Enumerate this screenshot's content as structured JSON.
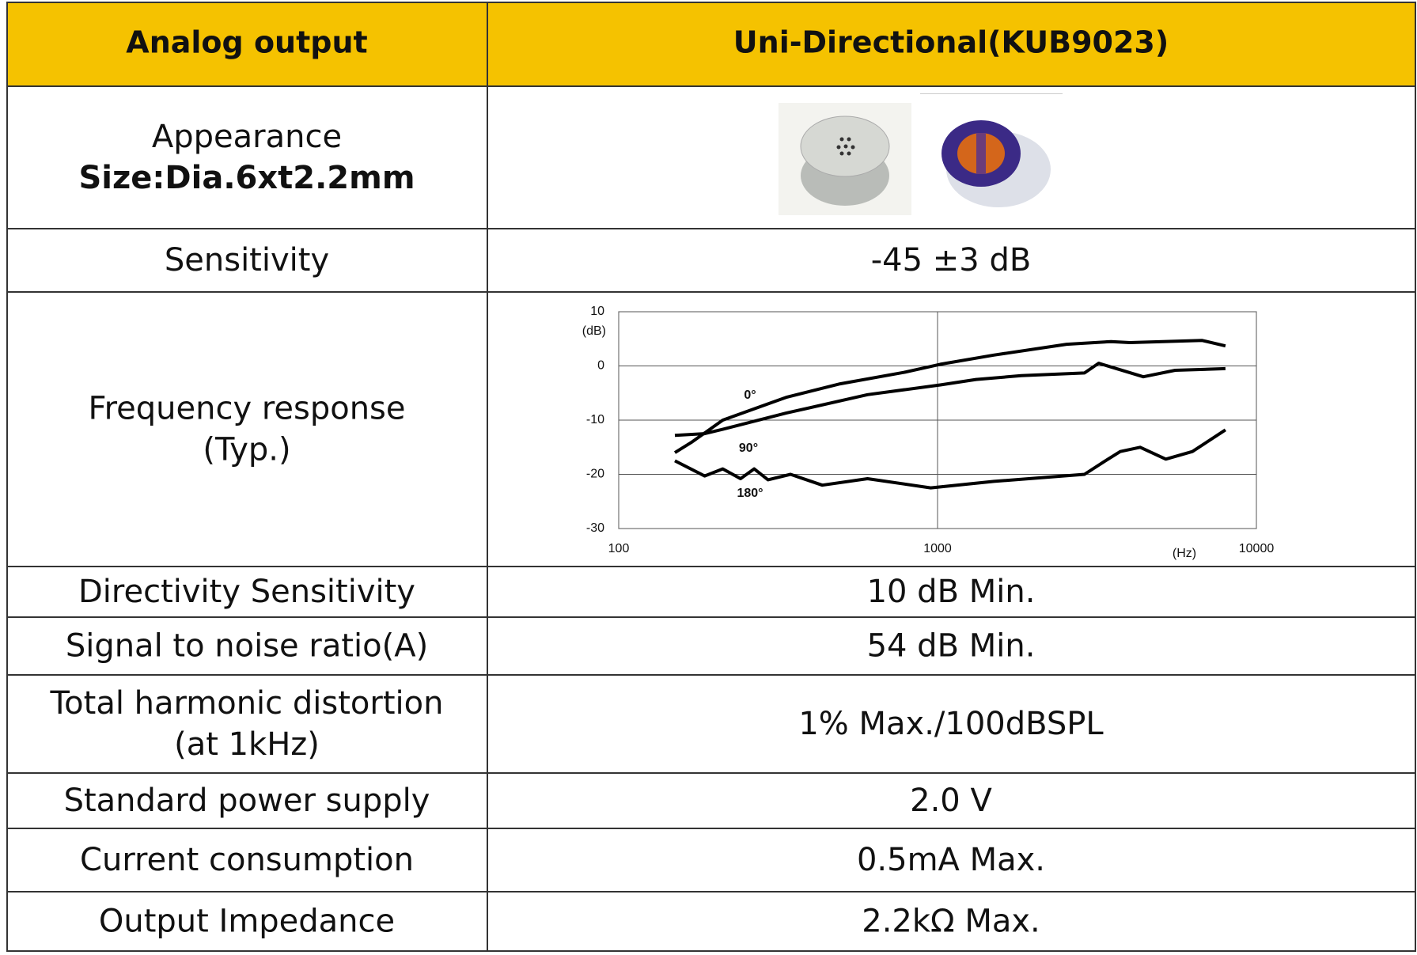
{
  "table": {
    "header": [
      "Analog output",
      "Uni-Directional(KUB9023)"
    ],
    "rows": [
      {
        "label": "Appearance",
        "sublabel": "Size:Dia.6xt2.2mm"
      },
      {
        "label": "Sensitivity",
        "value": "-45 ±3 dB"
      },
      {
        "label": "Frequency response",
        "sublabel": "(Typ.)"
      },
      {
        "label": "Directivity Sensitivity",
        "value": "10 dB Min."
      },
      {
        "label": "Signal to noise ratio(A)",
        "value": "54 dB Min."
      },
      {
        "label": "Total harmonic distortion",
        "sublabel": "(at 1kHz)",
        "value": "1% Max./100dBSPL"
      },
      {
        "label": "Standard power supply",
        "value": "2.0 V"
      },
      {
        "label": "Current consumption",
        "value": "0.5mA Max."
      },
      {
        "label": "Output Impedance",
        "value": "2.2kΩ Max."
      }
    ]
  },
  "chart_data": {
    "type": "line",
    "xscale": "log",
    "ylabel": "(dB)",
    "xlabel": "(Hz)",
    "xlim": [
      100,
      10000
    ],
    "xticks": [
      100,
      1000,
      10000
    ],
    "ylim": [
      -30,
      10
    ],
    "yticks": [
      -30,
      -20,
      -10,
      0,
      10
    ],
    "grid": true,
    "series": [
      {
        "name": "0°",
        "color": "#000000",
        "x": [
          150,
          170,
          212,
          335,
          495,
          783,
          1020,
          1500,
          2540,
          3500,
          4010,
          6760,
          8000
        ],
        "values": [
          -16,
          -14,
          -10,
          -5.8,
          -3.3,
          -1.2,
          0.3,
          2,
          4,
          4.5,
          4.3,
          4.7,
          3.7
        ]
      },
      {
        "name": "90°",
        "color": "#000000",
        "x": [
          150,
          186,
          212,
          335,
          603,
          1020,
          1320,
          1830,
          2890,
          3200,
          4420,
          5560,
          8000
        ],
        "values": [
          -12.8,
          -12.5,
          -11.7,
          -8.7,
          -5.3,
          -3.5,
          -2.5,
          -1.8,
          -1.3,
          0.5,
          -2,
          -0.8,
          -0.5
        ]
      },
      {
        "name": "180°",
        "color": "#000000",
        "x": [
          150,
          186,
          212,
          241,
          266,
          294,
          346,
          435,
          603,
          952,
          1503,
          2890,
          3300,
          3740,
          4320,
          5200,
          6300,
          8000
        ],
        "values": [
          -17.5,
          -20.3,
          -19,
          -20.8,
          -19,
          -21,
          -20,
          -22,
          -20.8,
          -22.5,
          -21.3,
          -20,
          -17.8,
          -15.8,
          -15,
          -17.2,
          -15.8,
          -11.8
        ]
      }
    ]
  }
}
